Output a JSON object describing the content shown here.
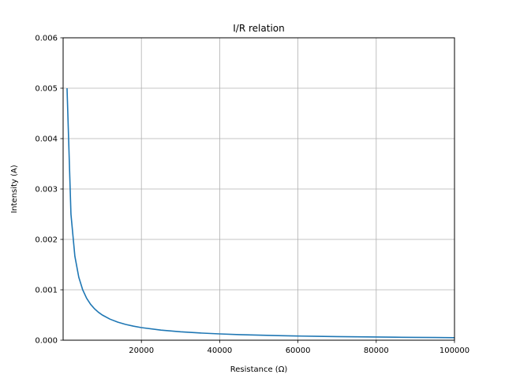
{
  "chart_data": {
    "type": "line",
    "title": "I/R relation",
    "xlabel": "Resistance (Ω)",
    "ylabel": "Intensity (A)",
    "xlim": [
      0,
      100000
    ],
    "ylim": [
      0,
      0.006
    ],
    "x_ticks": [
      20000,
      40000,
      60000,
      80000,
      100000
    ],
    "x_tick_labels": [
      "20000",
      "40000",
      "60000",
      "80000",
      "100000"
    ],
    "y_ticks": [
      0,
      0.001,
      0.002,
      0.003,
      0.004,
      0.005,
      0.006
    ],
    "y_tick_labels": [
      "0.000",
      "0.001",
      "0.002",
      "0.003",
      "0.004",
      "0.005",
      "0.006"
    ],
    "grid": true,
    "series": [
      {
        "color": "#1f77b4",
        "x": [
          1000,
          2000,
          3000,
          4000,
          5000,
          6000,
          7000,
          8000,
          9000,
          10000,
          12000,
          14000,
          16000,
          18000,
          20000,
          25000,
          30000,
          35000,
          40000,
          45000,
          50000,
          55000,
          60000,
          65000,
          70000,
          75000,
          80000,
          85000,
          90000,
          95000,
          100000
        ],
        "y": [
          0.005,
          0.0025,
          0.001667,
          0.00125,
          0.001,
          0.000833,
          0.000714,
          0.000625,
          0.000556,
          0.0005,
          0.000417,
          0.000357,
          0.000313,
          0.000278,
          0.00025,
          0.0002,
          0.000167,
          0.000143,
          0.000125,
          0.000111,
          0.0001,
          9.1e-05,
          8.3e-05,
          7.7e-05,
          7.1e-05,
          6.7e-05,
          6.3e-05,
          5.9e-05,
          5.6e-05,
          5.3e-05,
          5e-05
        ]
      }
    ]
  }
}
